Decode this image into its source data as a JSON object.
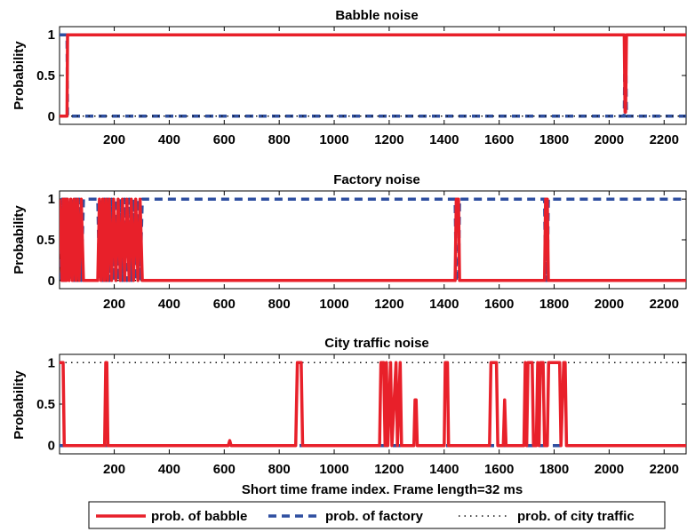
{
  "colors": {
    "babble": "#e8202a",
    "factory": "#2f4fa0",
    "city": "#111111"
  },
  "xlabel": "Short time frame index. Frame length=32 ms",
  "legend": [
    {
      "key": "babble",
      "label": "prob. of babble",
      "style": "solid"
    },
    {
      "key": "factory",
      "label": "prob. of factory",
      "style": "dashed"
    },
    {
      "key": "city",
      "label": "prob. of city traffic",
      "style": "dotted"
    }
  ],
  "chart_data": [
    {
      "type": "line",
      "title": "Babble noise",
      "ylabel": "Probability",
      "xlim": [
        1,
        2280
      ],
      "ylim": [
        -0.1,
        1.1
      ],
      "xticks": [
        200,
        400,
        600,
        800,
        1000,
        1200,
        1400,
        1600,
        1800,
        2000,
        2200
      ],
      "yticks": [
        0,
        0.5,
        1
      ],
      "ytick_labels": [
        "0",
        "0.5",
        "1"
      ],
      "series": [
        {
          "key": "babble",
          "x": [
            1,
            28,
            30,
            2055,
            2058,
            2060,
            2063,
            2280
          ],
          "y": [
            0,
            0,
            1,
            1,
            0.05,
            0.05,
            1,
            1
          ]
        },
        {
          "key": "factory",
          "x": [
            1,
            28,
            30,
            2055,
            2058,
            2060,
            2063,
            2280
          ],
          "y": [
            1,
            1,
            0,
            0,
            0.95,
            0.95,
            0,
            0
          ]
        },
        {
          "key": "city",
          "x": [
            1,
            2280
          ],
          "y": [
            0,
            0
          ]
        }
      ]
    },
    {
      "type": "line",
      "title": "Factory noise",
      "ylabel": "Probability",
      "xlim": [
        1,
        2280
      ],
      "ylim": [
        -0.1,
        1.1
      ],
      "xticks": [
        200,
        400,
        600,
        800,
        1000,
        1200,
        1400,
        1600,
        1800,
        2000,
        2200
      ],
      "yticks": [
        0,
        0.5,
        1
      ],
      "ytick_labels": [
        "0",
        "0.5",
        "1"
      ],
      "series": [
        {
          "key": "babble",
          "x": [
            1,
            10,
            14,
            18,
            22,
            26,
            30,
            36,
            42,
            48,
            54,
            60,
            66,
            72,
            80,
            88,
            140,
            146,
            152,
            158,
            164,
            170,
            176,
            182,
            190,
            198,
            206,
            214,
            222,
            230,
            238,
            246,
            254,
            262,
            270,
            278,
            286,
            294,
            302,
            310,
            1440,
            1444,
            1452,
            1456,
            1765,
            1769,
            1775,
            1779,
            2280
          ],
          "y": [
            1,
            0,
            1,
            0,
            1,
            0,
            1,
            0,
            1,
            0,
            1,
            0,
            1,
            0,
            1,
            0,
            0,
            1,
            0,
            1,
            0,
            1,
            0,
            1,
            0,
            1,
            0,
            1,
            0,
            1,
            0,
            1,
            0,
            1,
            0,
            1,
            0,
            1,
            0,
            0,
            0,
            1,
            1,
            0,
            0,
            1,
            1,
            0,
            0
          ]
        },
        {
          "key": "factory",
          "x": [
            1,
            10,
            14,
            18,
            22,
            26,
            30,
            36,
            42,
            48,
            54,
            60,
            66,
            72,
            80,
            88,
            140,
            146,
            152,
            158,
            164,
            170,
            176,
            182,
            190,
            198,
            206,
            214,
            222,
            230,
            238,
            246,
            254,
            262,
            270,
            278,
            286,
            294,
            302,
            310,
            1440,
            1444,
            1452,
            1456,
            1765,
            1769,
            1775,
            1779,
            2280
          ],
          "y": [
            0,
            1,
            0,
            1,
            0,
            1,
            0,
            1,
            0,
            1,
            0,
            1,
            0,
            1,
            0,
            1,
            1,
            0,
            1,
            0,
            1,
            0,
            1,
            0,
            1,
            0,
            1,
            0,
            1,
            0,
            1,
            0,
            1,
            0,
            1,
            0,
            1,
            0,
            1,
            1,
            1,
            0,
            0,
            1,
            1,
            0,
            0,
            1,
            1
          ]
        },
        {
          "key": "city",
          "x": [
            1,
            2280
          ],
          "y": [
            0,
            0
          ]
        }
      ]
    },
    {
      "type": "line",
      "title": "City traffic noise",
      "ylabel": "Probability",
      "xlim": [
        1,
        2280
      ],
      "ylim": [
        -0.1,
        1.1
      ],
      "xticks": [
        200,
        400,
        600,
        800,
        1000,
        1200,
        1400,
        1600,
        1800,
        2000,
        2200
      ],
      "yticks": [
        0,
        0.5,
        1
      ],
      "ytick_labels": [
        "0",
        "0.5",
        "1"
      ],
      "series": [
        {
          "key": "babble",
          "x": [
            1,
            14,
            18,
            165,
            169,
            173,
            177,
            615,
            620,
            625,
            860,
            866,
            870,
            880,
            885,
            1165,
            1170,
            1180,
            1185,
            1190,
            1195,
            1205,
            1210,
            1225,
            1230,
            1240,
            1245,
            1290,
            1294,
            1298,
            1302,
            1400,
            1404,
            1412,
            1416,
            1565,
            1570,
            1590,
            1595,
            1615,
            1620,
            1625,
            1690,
            1695,
            1700,
            1705,
            1720,
            1725,
            1735,
            1740,
            1745,
            1750,
            1760,
            1765,
            1775,
            1780,
            1790,
            1795,
            1820,
            1825,
            1835,
            1840,
            1845,
            2280
          ],
          "y": [
            1,
            1,
            0,
            0,
            1,
            1,
            0,
            0,
            0.06,
            0,
            0,
            1,
            1,
            1,
            0,
            0,
            1,
            1,
            0,
            1,
            0,
            1,
            0,
            1,
            0,
            1,
            0,
            0,
            0.55,
            0.55,
            0,
            0,
            1,
            1,
            0,
            0,
            1,
            1,
            0,
            0,
            0.55,
            0,
            0,
            1,
            0,
            1,
            1,
            0,
            0,
            1,
            0,
            1,
            1,
            0,
            0,
            1,
            1,
            1,
            1,
            0,
            1,
            1,
            0,
            0
          ]
        },
        {
          "key": "factory",
          "x": [
            1,
            2280
          ],
          "y": [
            0,
            0
          ]
        },
        {
          "key": "city",
          "x": [
            1,
            2280
          ],
          "y": [
            1,
            1
          ]
        }
      ]
    }
  ]
}
